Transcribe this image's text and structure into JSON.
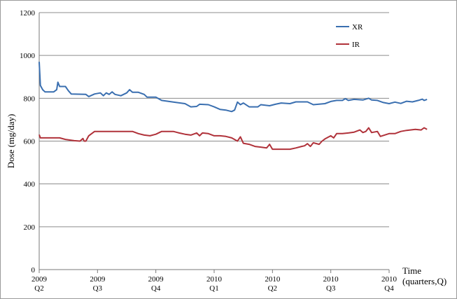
{
  "chart_data": {
    "type": "line",
    "title": "",
    "ylabel": "Dose (mg/day)",
    "xlabel": "Time (quarters,Q)",
    "xlabel_lines": [
      "Time",
      "(quarters,Q)"
    ],
    "ylim": [
      0,
      1200
    ],
    "yticks": [
      0,
      200,
      400,
      600,
      800,
      1000,
      1200
    ],
    "grid": "horizontal",
    "legend_position": "top-right",
    "x_ticks": [
      {
        "year": "2009",
        "quarter": "Q2"
      },
      {
        "year": "2009",
        "quarter": "Q3"
      },
      {
        "year": "2009",
        "quarter": "Q4"
      },
      {
        "year": "2010",
        "quarter": "Q1"
      },
      {
        "year": "2010",
        "quarter": "Q2"
      },
      {
        "year": "2010",
        "quarter": "Q3"
      },
      {
        "year": "2010",
        "quarter": "Q4"
      }
    ],
    "x_unit": "quarters since 2009 Q2",
    "series": [
      {
        "name": "XR",
        "color": "#3a6fb0",
        "points": [
          [
            0,
            970
          ],
          [
            0.02,
            860
          ],
          [
            0.06,
            840
          ],
          [
            0.1,
            830
          ],
          [
            0.25,
            830
          ],
          [
            0.3,
            840
          ],
          [
            0.32,
            875
          ],
          [
            0.35,
            855
          ],
          [
            0.45,
            855
          ],
          [
            0.5,
            835
          ],
          [
            0.55,
            820
          ],
          [
            0.8,
            818
          ],
          [
            0.85,
            808
          ],
          [
            0.95,
            820
          ],
          [
            1.05,
            825
          ],
          [
            1.1,
            812
          ],
          [
            1.15,
            825
          ],
          [
            1.2,
            818
          ],
          [
            1.25,
            830
          ],
          [
            1.3,
            818
          ],
          [
            1.4,
            812
          ],
          [
            1.5,
            825
          ],
          [
            1.55,
            840
          ],
          [
            1.6,
            828
          ],
          [
            1.7,
            828
          ],
          [
            1.8,
            818
          ],
          [
            1.85,
            805
          ],
          [
            2.0,
            805
          ],
          [
            2.1,
            790
          ],
          [
            2.3,
            782
          ],
          [
            2.5,
            775
          ],
          [
            2.6,
            760
          ],
          [
            2.7,
            762
          ],
          [
            2.75,
            772
          ],
          [
            2.9,
            770
          ],
          [
            3.0,
            760
          ],
          [
            3.1,
            748
          ],
          [
            3.2,
            745
          ],
          [
            3.3,
            738
          ],
          [
            3.35,
            745
          ],
          [
            3.4,
            782
          ],
          [
            3.45,
            770
          ],
          [
            3.5,
            778
          ],
          [
            3.6,
            760
          ],
          [
            3.75,
            760
          ],
          [
            3.8,
            770
          ],
          [
            3.95,
            765
          ],
          [
            4.05,
            772
          ],
          [
            4.15,
            778
          ],
          [
            4.3,
            775
          ],
          [
            4.4,
            783
          ],
          [
            4.6,
            783
          ],
          [
            4.7,
            770
          ],
          [
            4.9,
            775
          ],
          [
            5.0,
            785
          ],
          [
            5.1,
            790
          ],
          [
            5.2,
            790
          ],
          [
            5.25,
            798
          ],
          [
            5.3,
            790
          ],
          [
            5.4,
            795
          ],
          [
            5.55,
            792
          ],
          [
            5.65,
            800
          ],
          [
            5.7,
            792
          ],
          [
            5.8,
            790
          ],
          [
            5.9,
            780
          ],
          [
            6.0,
            775
          ],
          [
            6.1,
            782
          ],
          [
            6.2,
            776
          ],
          [
            6.3,
            786
          ],
          [
            6.4,
            783
          ],
          [
            6.5,
            790
          ],
          [
            6.57,
            796
          ],
          [
            6.6,
            790
          ],
          [
            6.65,
            795
          ]
        ]
      },
      {
        "name": "IR",
        "color": "#b0323a",
        "points": [
          [
            0,
            630
          ],
          [
            0.02,
            615
          ],
          [
            0.2,
            615
          ],
          [
            0.35,
            615
          ],
          [
            0.45,
            608
          ],
          [
            0.6,
            602
          ],
          [
            0.7,
            600
          ],
          [
            0.75,
            612
          ],
          [
            0.77,
            600
          ],
          [
            0.8,
            600
          ],
          [
            0.85,
            625
          ],
          [
            0.95,
            645
          ],
          [
            1.2,
            645
          ],
          [
            1.4,
            645
          ],
          [
            1.6,
            645
          ],
          [
            1.7,
            635
          ],
          [
            1.8,
            628
          ],
          [
            1.9,
            625
          ],
          [
            2.0,
            632
          ],
          [
            2.1,
            645
          ],
          [
            2.3,
            645
          ],
          [
            2.4,
            638
          ],
          [
            2.5,
            632
          ],
          [
            2.6,
            628
          ],
          [
            2.7,
            638
          ],
          [
            2.75,
            625
          ],
          [
            2.8,
            638
          ],
          [
            2.9,
            635
          ],
          [
            3.0,
            625
          ],
          [
            3.1,
            625
          ],
          [
            3.2,
            622
          ],
          [
            3.3,
            615
          ],
          [
            3.4,
            600
          ],
          [
            3.45,
            620
          ],
          [
            3.5,
            590
          ],
          [
            3.6,
            585
          ],
          [
            3.7,
            575
          ],
          [
            3.8,
            572
          ],
          [
            3.9,
            568
          ],
          [
            3.95,
            585
          ],
          [
            4.0,
            562
          ],
          [
            4.1,
            562
          ],
          [
            4.3,
            562
          ],
          [
            4.4,
            568
          ],
          [
            4.5,
            575
          ],
          [
            4.55,
            578
          ],
          [
            4.6,
            588
          ],
          [
            4.65,
            575
          ],
          [
            4.7,
            592
          ],
          [
            4.8,
            585
          ],
          [
            4.85,
            600
          ],
          [
            4.9,
            610
          ],
          [
            5.0,
            625
          ],
          [
            5.05,
            615
          ],
          [
            5.1,
            635
          ],
          [
            5.2,
            635
          ],
          [
            5.3,
            638
          ],
          [
            5.4,
            642
          ],
          [
            5.5,
            652
          ],
          [
            5.55,
            640
          ],
          [
            5.6,
            645
          ],
          [
            5.65,
            662
          ],
          [
            5.7,
            640
          ],
          [
            5.8,
            645
          ],
          [
            5.85,
            622
          ],
          [
            6.0,
            635
          ],
          [
            6.1,
            635
          ],
          [
            6.2,
            645
          ],
          [
            6.3,
            650
          ],
          [
            6.45,
            655
          ],
          [
            6.55,
            652
          ],
          [
            6.6,
            662
          ],
          [
            6.65,
            655
          ]
        ]
      }
    ]
  }
}
